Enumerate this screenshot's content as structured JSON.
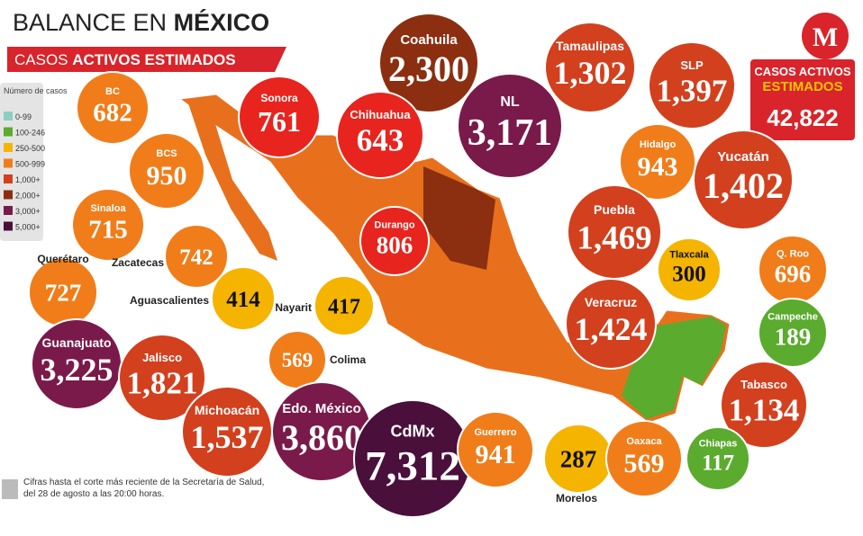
{
  "header": {
    "title_prefix": "BALANCE EN ",
    "title_bold": "MÉXICO",
    "subtitle_prefix": "CASOS ",
    "subtitle_bold": "ACTIVOS ESTIMADOS",
    "logo": "M"
  },
  "legend": {
    "title": "Número de casos",
    "items": [
      {
        "label": "0-99",
        "color": "#8ccfc0"
      },
      {
        "label": "100-246",
        "color": "#5aab2e"
      },
      {
        "label": "250-500",
        "color": "#f5b400"
      },
      {
        "label": "500-999",
        "color": "#f07d1a"
      },
      {
        "label": "1,000+",
        "color": "#d2401e"
      },
      {
        "label": "2,000+",
        "color": "#8b2f10"
      },
      {
        "label": "3,000+",
        "color": "#7a1a4a"
      },
      {
        "label": "5,000+",
        "color": "#4a0f3a"
      }
    ]
  },
  "total": {
    "label_top": "CASOS ACTIVOS",
    "label_bottom": "ESTIMADOS",
    "value": "42,822"
  },
  "states": [
    {
      "name": "Coahuila",
      "value": "2,300",
      "color": "#8b2f10"
    },
    {
      "name": "Tamaulipas",
      "value": "1,302",
      "color": "#d2401e"
    },
    {
      "name": "SLP",
      "value": "1,397",
      "color": "#d2401e"
    },
    {
      "name": "NL",
      "value": "3,171",
      "color": "#7a1a4a"
    },
    {
      "name": "BC",
      "value": "682",
      "color": "#f07d1a"
    },
    {
      "name": "Sonora",
      "value": "761",
      "color": "#e8241e"
    },
    {
      "name": "Chihuahua",
      "value": "643",
      "color": "#e8241e"
    },
    {
      "name": "Hidalgo",
      "value": "943",
      "color": "#f07d1a"
    },
    {
      "name": "BCS",
      "value": "950",
      "color": "#f07d1a"
    },
    {
      "name": "Yucatán",
      "value": "1,402",
      "color": "#d2401e"
    },
    {
      "name": "Sinaloa",
      "value": "715",
      "color": "#f07d1a"
    },
    {
      "name": "Puebla",
      "value": "1,469",
      "color": "#d2401e"
    },
    {
      "name": "Durango",
      "value": "806",
      "color": "#e8241e"
    },
    {
      "name": "Zacatecas",
      "value": "742",
      "color": "#f07d1a"
    },
    {
      "name": "Tlaxcala",
      "value": "300",
      "color": "#f5b400"
    },
    {
      "name": "Q. Roo",
      "value": "696",
      "color": "#f07d1a"
    },
    {
      "name": "Querétaro",
      "value": "727",
      "color": "#f07d1a"
    },
    {
      "name": "Aguascalientes",
      "value": "414",
      "color": "#f5b400"
    },
    {
      "name": "Nayarit",
      "value": "417",
      "color": "#f5b400"
    },
    {
      "name": "Veracruz",
      "value": "1,424",
      "color": "#d2401e"
    },
    {
      "name": "Campeche",
      "value": "189",
      "color": "#5aab2e"
    },
    {
      "name": "Guanajuato",
      "value": "3,225",
      "color": "#7a1a4a"
    },
    {
      "name": "Colima",
      "value": "569",
      "color": "#f07d1a"
    },
    {
      "name": "Jalisco",
      "value": "1,821",
      "color": "#d2401e"
    },
    {
      "name": "Tabasco",
      "value": "1,134",
      "color": "#d2401e"
    },
    {
      "name": "Michoacán",
      "value": "1,537",
      "color": "#d2401e"
    },
    {
      "name": "Edo. México",
      "value": "3,860",
      "color": "#7a1a4a"
    },
    {
      "name": "CdMx",
      "value": "7,312",
      "color": "#4a0f3a"
    },
    {
      "name": "Guerrero",
      "value": "941",
      "color": "#f07d1a"
    },
    {
      "name": "Morelos",
      "value": "287",
      "color": "#f5b400"
    },
    {
      "name": "Oaxaca",
      "value": "569",
      "color": "#f07d1a"
    },
    {
      "name": "Chiapas",
      "value": "117",
      "color": "#5aab2e"
    }
  ],
  "footnote": "Cifras hasta el corte más reciente de la Secretaría de Salud, del 28 de agosto a las 20:00 horas."
}
